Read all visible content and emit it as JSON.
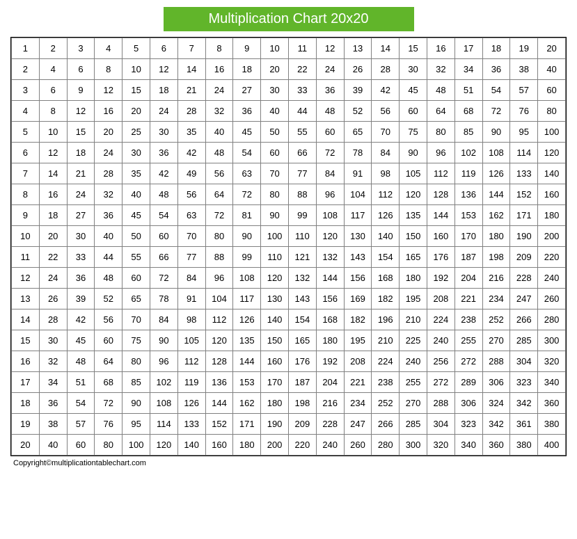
{
  "title": "Multiplication Chart 20x20",
  "title_bg_color": "#61b52a",
  "title_text_color": "#ffffff",
  "title_fontsize": 20,
  "copyright": "Copyright©multiplicationtablechart.com",
  "table": {
    "type": "table",
    "size": 20,
    "cell_fontsize": 13,
    "cell_text_color": "#000000",
    "cell_bg_color": "#ffffff",
    "border_color": "#808080",
    "outer_border_color": "#000000",
    "rows": [
      [
        1,
        2,
        3,
        4,
        5,
        6,
        7,
        8,
        9,
        10,
        11,
        12,
        13,
        14,
        15,
        16,
        17,
        18,
        19,
        20
      ],
      [
        2,
        4,
        6,
        8,
        10,
        12,
        14,
        16,
        18,
        20,
        22,
        24,
        26,
        28,
        30,
        32,
        34,
        36,
        38,
        40
      ],
      [
        3,
        6,
        9,
        12,
        15,
        18,
        21,
        24,
        27,
        30,
        33,
        36,
        39,
        42,
        45,
        48,
        51,
        54,
        57,
        60
      ],
      [
        4,
        8,
        12,
        16,
        20,
        24,
        28,
        32,
        36,
        40,
        44,
        48,
        52,
        56,
        60,
        64,
        68,
        72,
        76,
        80
      ],
      [
        5,
        10,
        15,
        20,
        25,
        30,
        35,
        40,
        45,
        50,
        55,
        60,
        65,
        70,
        75,
        80,
        85,
        90,
        95,
        100
      ],
      [
        6,
        12,
        18,
        24,
        30,
        36,
        42,
        48,
        54,
        60,
        66,
        72,
        78,
        84,
        90,
        96,
        102,
        108,
        114,
        120
      ],
      [
        7,
        14,
        21,
        28,
        35,
        42,
        49,
        56,
        63,
        70,
        77,
        84,
        91,
        98,
        105,
        112,
        119,
        126,
        133,
        140
      ],
      [
        8,
        16,
        24,
        32,
        40,
        48,
        56,
        64,
        72,
        80,
        88,
        96,
        104,
        112,
        120,
        128,
        136,
        144,
        152,
        160
      ],
      [
        9,
        18,
        27,
        36,
        45,
        54,
        63,
        72,
        81,
        90,
        99,
        108,
        117,
        126,
        135,
        144,
        153,
        162,
        171,
        180
      ],
      [
        10,
        20,
        30,
        40,
        50,
        60,
        70,
        80,
        90,
        100,
        110,
        120,
        130,
        140,
        150,
        160,
        170,
        180,
        190,
        200
      ],
      [
        11,
        22,
        33,
        44,
        55,
        66,
        77,
        88,
        99,
        110,
        121,
        132,
        143,
        154,
        165,
        176,
        187,
        198,
        209,
        220
      ],
      [
        12,
        24,
        36,
        48,
        60,
        72,
        84,
        96,
        108,
        120,
        132,
        144,
        156,
        168,
        180,
        192,
        204,
        216,
        228,
        240
      ],
      [
        13,
        26,
        39,
        52,
        65,
        78,
        91,
        104,
        117,
        130,
        143,
        156,
        169,
        182,
        195,
        208,
        221,
        234,
        247,
        260
      ],
      [
        14,
        28,
        42,
        56,
        70,
        84,
        98,
        112,
        126,
        140,
        154,
        168,
        182,
        196,
        210,
        224,
        238,
        252,
        266,
        280
      ],
      [
        15,
        30,
        45,
        60,
        75,
        90,
        105,
        120,
        135,
        150,
        165,
        180,
        195,
        210,
        225,
        240,
        255,
        270,
        285,
        300
      ],
      [
        16,
        32,
        48,
        64,
        80,
        96,
        112,
        128,
        144,
        160,
        176,
        192,
        208,
        224,
        240,
        256,
        272,
        288,
        304,
        320
      ],
      [
        17,
        34,
        51,
        68,
        85,
        102,
        119,
        136,
        153,
        170,
        187,
        204,
        221,
        238,
        255,
        272,
        289,
        306,
        323,
        340
      ],
      [
        18,
        36,
        54,
        72,
        90,
        108,
        126,
        144,
        162,
        180,
        198,
        216,
        234,
        252,
        270,
        288,
        306,
        324,
        342,
        360
      ],
      [
        19,
        38,
        57,
        76,
        95,
        114,
        133,
        152,
        171,
        190,
        209,
        228,
        247,
        266,
        285,
        304,
        323,
        342,
        361,
        380
      ],
      [
        20,
        40,
        60,
        80,
        100,
        120,
        140,
        160,
        180,
        200,
        220,
        240,
        260,
        280,
        300,
        320,
        340,
        360,
        380,
        400
      ]
    ]
  }
}
